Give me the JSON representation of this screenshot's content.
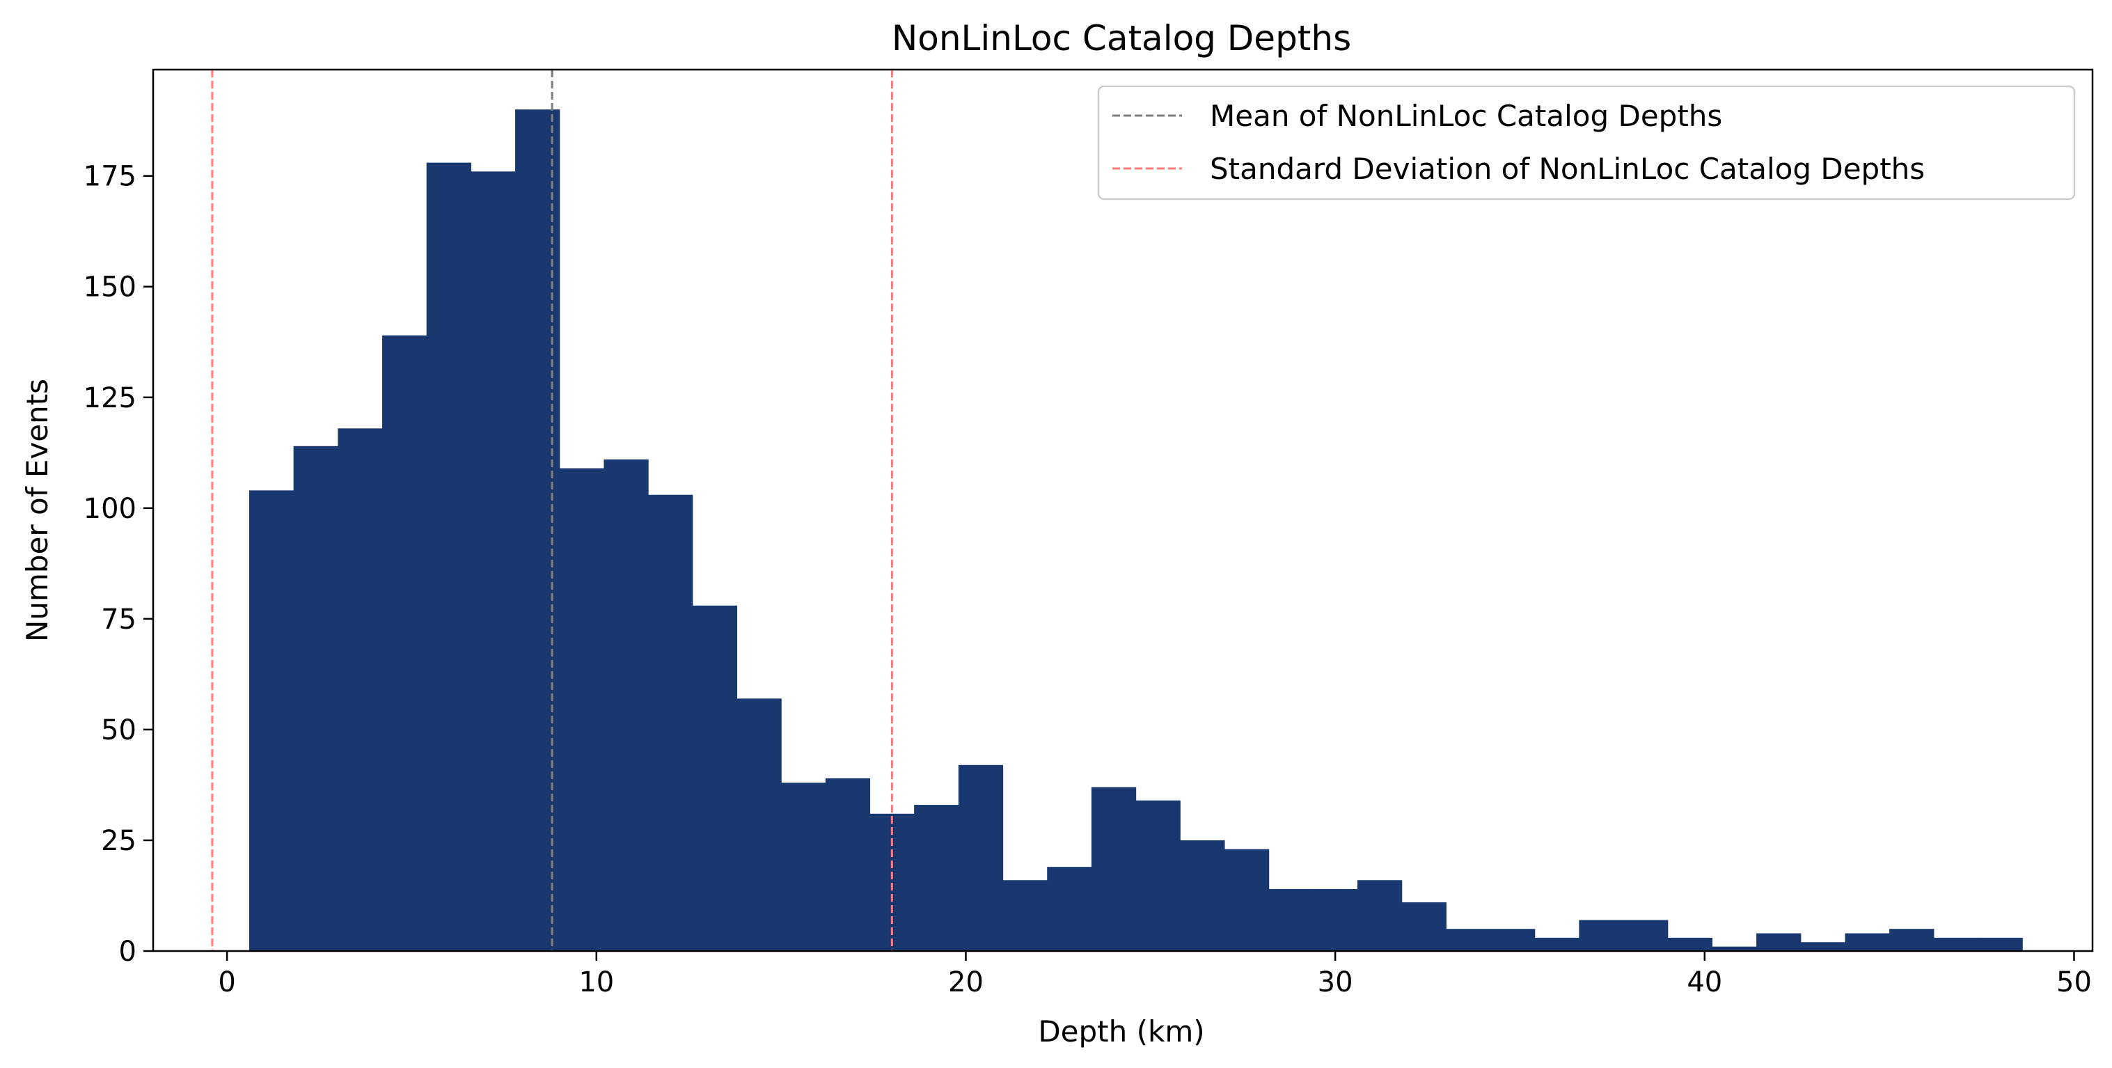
{
  "chart_data": {
    "type": "bar",
    "title": "NonLinLoc Catalog Depths",
    "xlabel": "Depth (km)",
    "ylabel": "Number of Events",
    "xlim": [
      -2,
      50.5
    ],
    "ylim": [
      0,
      199
    ],
    "xticks": [
      0,
      10,
      20,
      30,
      40,
      50
    ],
    "yticks": [
      0,
      25,
      50,
      75,
      100,
      125,
      150,
      175
    ],
    "bar_color": "#193870",
    "bins": {
      "start": 0.6,
      "width": 1.2,
      "counts": [
        104,
        114,
        118,
        139,
        178,
        176,
        190,
        109,
        111,
        103,
        78,
        57,
        38,
        39,
        31,
        33,
        42,
        16,
        19,
        37,
        34,
        25,
        23,
        14,
        14,
        16,
        11,
        5,
        5,
        3,
        7,
        7,
        3,
        1,
        4,
        2,
        4,
        5,
        3,
        3
      ]
    },
    "reference_lines": [
      {
        "label": "Mean of NonLinLoc Catalog Depths",
        "x": 8.8,
        "color": "#7f7f7f"
      },
      {
        "label": "Standard Deviation of NonLinLoc Catalog Depths",
        "x": [
          -0.4,
          18.0
        ],
        "color": "#ff7a7a"
      }
    ],
    "legend": {
      "position": "top-right",
      "entries": [
        {
          "label": "Mean of NonLinLoc Catalog Depths",
          "color": "#7f7f7f",
          "style": "dashed"
        },
        {
          "label": "Standard Deviation of NonLinLoc Catalog Depths",
          "color": "#ff7a7a",
          "style": "dashed"
        }
      ]
    },
    "grid": false
  }
}
